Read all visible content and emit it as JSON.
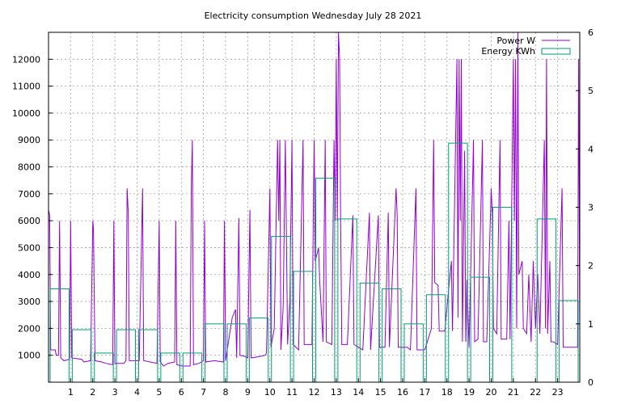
{
  "chart_data": {
    "type": "line",
    "title": "Electricity consumption Wednesday July 28 2021",
    "x_ticks": [
      "1",
      "2",
      "3",
      "4",
      "5",
      "6",
      "7",
      "8",
      "9",
      "10",
      "11",
      "12",
      "13",
      "14",
      "15",
      "16",
      "17",
      "18",
      "19",
      "20",
      "21",
      "22",
      "23"
    ],
    "xlim": [
      0,
      24
    ],
    "y_left_ticks": [
      "1000",
      "2000",
      "3000",
      "4000",
      "5000",
      "6000",
      "7000",
      "8000",
      "9000",
      "10000",
      "11000",
      "12000"
    ],
    "ylim_left": [
      0,
      13000
    ],
    "y_right_ticks": [
      "0",
      "1",
      "2",
      "3",
      "4",
      "5",
      "6"
    ],
    "ylim_right": [
      0,
      6
    ],
    "grid": true,
    "legend_position": "top-right",
    "series": [
      {
        "name": "Power W",
        "axis": "left",
        "color": "#9400d3",
        "style": "line",
        "points": [
          [
            0,
            6400
          ],
          [
            0.05,
            6200
          ],
          [
            0.1,
            1200
          ],
          [
            0.3,
            1200
          ],
          [
            0.35,
            1000
          ],
          [
            0.45,
            1000
          ],
          [
            0.5,
            6000
          ],
          [
            0.55,
            900
          ],
          [
            0.7,
            800
          ],
          [
            0.95,
            850
          ],
          [
            1.0,
            6000
          ],
          [
            1.05,
            900
          ],
          [
            1.5,
            850
          ],
          [
            1.6,
            750
          ],
          [
            1.9,
            800
          ],
          [
            2.0,
            6000
          ],
          [
            2.03,
            5700
          ],
          [
            2.1,
            800
          ],
          [
            2.4,
            750
          ],
          [
            2.6,
            700
          ],
          [
            2.9,
            650
          ],
          [
            2.95,
            6000
          ],
          [
            3.0,
            700
          ],
          [
            3.4,
            700
          ],
          [
            3.5,
            800
          ],
          [
            3.55,
            7200
          ],
          [
            3.6,
            6300
          ],
          [
            3.65,
            800
          ],
          [
            3.9,
            800
          ],
          [
            4.1,
            800
          ],
          [
            4.25,
            7200
          ],
          [
            4.3,
            800
          ],
          [
            4.6,
            750
          ],
          [
            4.9,
            700
          ],
          [
            5.0,
            6000
          ],
          [
            5.05,
            750
          ],
          [
            5.2,
            600
          ],
          [
            5.4,
            700
          ],
          [
            5.7,
            750
          ],
          [
            5.75,
            6000
          ],
          [
            5.8,
            650
          ],
          [
            6.0,
            600
          ],
          [
            6.4,
            600
          ],
          [
            6.45,
            7200
          ],
          [
            6.5,
            9000
          ],
          [
            6.55,
            650
          ],
          [
            6.8,
            700
          ],
          [
            7.0,
            800
          ],
          [
            7.05,
            6000
          ],
          [
            7.1,
            750
          ],
          [
            7.5,
            800
          ],
          [
            7.9,
            750
          ],
          [
            7.95,
            6000
          ],
          [
            8.0,
            800
          ],
          [
            8.2,
            1900
          ],
          [
            8.3,
            2400
          ],
          [
            8.45,
            2700
          ],
          [
            8.5,
            900
          ],
          [
            8.6,
            6100
          ],
          [
            8.65,
            1000
          ],
          [
            8.9,
            950
          ],
          [
            9.0,
            900
          ],
          [
            9.1,
            6400
          ],
          [
            9.15,
            900
          ],
          [
            9.5,
            950
          ],
          [
            9.8,
            1000
          ],
          [
            9.85,
            1100
          ],
          [
            10.0,
            7200
          ],
          [
            10.05,
            1300
          ],
          [
            10.2,
            2000
          ],
          [
            10.35,
            9000
          ],
          [
            10.4,
            6000
          ],
          [
            10.45,
            9000
          ],
          [
            10.5,
            1200
          ],
          [
            10.6,
            2800
          ],
          [
            10.7,
            9000
          ],
          [
            10.8,
            1400
          ],
          [
            10.9,
            3000
          ],
          [
            11.0,
            9000
          ],
          [
            11.05,
            1400
          ],
          [
            11.3,
            1200
          ],
          [
            11.5,
            9000
          ],
          [
            11.55,
            1400
          ],
          [
            11.9,
            1400
          ],
          [
            12.0,
            9000
          ],
          [
            12.05,
            4500
          ],
          [
            12.2,
            5000
          ],
          [
            12.25,
            3800
          ],
          [
            12.4,
            1500
          ],
          [
            12.5,
            9000
          ],
          [
            12.55,
            1500
          ],
          [
            12.8,
            1400
          ],
          [
            12.9,
            9000
          ],
          [
            12.95,
            6000
          ],
          [
            13.0,
            12000
          ],
          [
            13.05,
            6000
          ],
          [
            13.1,
            13000
          ],
          [
            13.15,
            12000
          ],
          [
            13.2,
            6000
          ],
          [
            13.25,
            1400
          ],
          [
            13.5,
            1400
          ],
          [
            13.75,
            6200
          ],
          [
            13.8,
            1400
          ],
          [
            14.0,
            1300
          ],
          [
            14.2,
            1200
          ],
          [
            14.5,
            6300
          ],
          [
            14.55,
            1200
          ],
          [
            14.9,
            6200
          ],
          [
            14.95,
            1300
          ],
          [
            15.2,
            1300
          ],
          [
            15.35,
            6300
          ],
          [
            15.4,
            1300
          ],
          [
            15.7,
            7200
          ],
          [
            15.75,
            6200
          ],
          [
            15.8,
            1300
          ],
          [
            16.2,
            1300
          ],
          [
            16.35,
            1200
          ],
          [
            16.6,
            7200
          ],
          [
            16.65,
            1200
          ],
          [
            16.9,
            1200
          ],
          [
            17.0,
            1200
          ],
          [
            17.3,
            2000
          ],
          [
            17.4,
            9000
          ],
          [
            17.45,
            3700
          ],
          [
            17.6,
            3600
          ],
          [
            17.65,
            1900
          ],
          [
            17.9,
            1900
          ],
          [
            18.2,
            4500
          ],
          [
            18.25,
            1900
          ],
          [
            18.45,
            12000
          ],
          [
            18.5,
            2400
          ],
          [
            18.55,
            12000
          ],
          [
            18.6,
            6000
          ],
          [
            18.65,
            12000
          ],
          [
            18.7,
            1500
          ],
          [
            18.8,
            8600
          ],
          [
            18.85,
            1500
          ],
          [
            18.9,
            3800
          ],
          [
            19.0,
            1300
          ],
          [
            19.2,
            9000
          ],
          [
            19.25,
            1500
          ],
          [
            19.4,
            1600
          ],
          [
            19.6,
            9000
          ],
          [
            19.65,
            1500
          ],
          [
            19.8,
            1500
          ],
          [
            20.0,
            7200
          ],
          [
            20.05,
            6200
          ],
          [
            20.1,
            2000
          ],
          [
            20.25,
            1800
          ],
          [
            20.4,
            9000
          ],
          [
            20.45,
            1600
          ],
          [
            20.7,
            1600
          ],
          [
            20.8,
            6000
          ],
          [
            20.85,
            1600
          ],
          [
            21.0,
            12000
          ],
          [
            21.05,
            6000
          ],
          [
            21.1,
            12000
          ],
          [
            21.15,
            2000
          ],
          [
            21.2,
            13000
          ],
          [
            21.25,
            4000
          ],
          [
            21.4,
            4500
          ],
          [
            21.45,
            2000
          ],
          [
            21.6,
            1800
          ],
          [
            21.7,
            4000
          ],
          [
            21.8,
            1500
          ],
          [
            21.9,
            4500
          ],
          [
            22.0,
            2000
          ],
          [
            22.1,
            4000
          ],
          [
            22.2,
            1800
          ],
          [
            22.4,
            9000
          ],
          [
            22.45,
            2000
          ],
          [
            22.5,
            12000
          ],
          [
            22.55,
            1800
          ],
          [
            22.65,
            4500
          ],
          [
            22.7,
            1500
          ],
          [
            22.8,
            1500
          ],
          [
            23.0,
            1400
          ],
          [
            23.2,
            7200
          ],
          [
            23.25,
            1300
          ],
          [
            23.5,
            1300
          ],
          [
            23.9,
            1300
          ],
          [
            23.95,
            12000
          ],
          [
            24.0,
            1800
          ]
        ]
      },
      {
        "name": "Energy KWh",
        "axis": "right",
        "color": "#009e73",
        "style": "steps",
        "values": [
          1.6,
          0.9,
          0.5,
          0.9,
          0.9,
          0.5,
          0.5,
          1.0,
          1.0,
          1.1,
          2.5,
          1.9,
          3.5,
          2.8,
          1.7,
          1.6,
          1.0,
          1.5,
          4.1,
          1.8,
          3.0,
          0.0,
          2.8,
          1.4
        ]
      }
    ]
  }
}
